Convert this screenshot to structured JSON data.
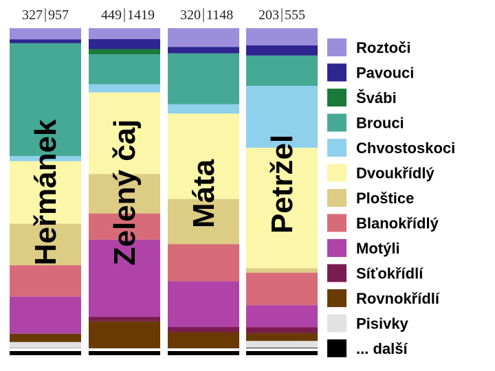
{
  "chart_data": {
    "type": "bar",
    "stacked": true,
    "normalized": true,
    "legend_position": "right",
    "grid": false,
    "categories": [
      "Heřmánek",
      "Zelený čaj",
      "Máta",
      "Petržel"
    ],
    "header_labels": [
      {
        "left": "327",
        "right": "957"
      },
      {
        "left": "449",
        "right": "1419"
      },
      {
        "left": "320",
        "right": "1148"
      },
      {
        "left": "203",
        "right": "555"
      }
    ],
    "series": [
      {
        "name": "Roztoči",
        "color": "#9b8fdc",
        "values": [
          3.5,
          3.4,
          5.9,
          5.1
        ]
      },
      {
        "name": "Pavouci",
        "color": "#2e2590",
        "values": [
          1.2,
          3.1,
          2.0,
          3.0
        ]
      },
      {
        "name": "Švábi",
        "color": "#1a7a3a",
        "values": [
          0,
          1.6,
          0,
          0
        ]
      },
      {
        "name": "Brouci",
        "color": "#45a995",
        "values": [
          35.3,
          9.3,
          15.9,
          9.0
        ]
      },
      {
        "name": "Chvostoskoci",
        "color": "#8fd0ec",
        "values": [
          1.6,
          2.5,
          2.9,
          18.3
        ]
      },
      {
        "name": "Dvoukřídlý",
        "color": "#fbf6a8",
        "values": [
          19.5,
          25.3,
          26.7,
          35.7
        ]
      },
      {
        "name": "Ploštice",
        "color": "#ddcc84",
        "values": [
          13.0,
          12.2,
          14.1,
          1.3
        ]
      },
      {
        "name": "Blanokřídlý",
        "color": "#d76c78",
        "values": [
          9.8,
          8.1,
          11.6,
          9.6
        ]
      },
      {
        "name": "Motýli",
        "color": "#b043a8",
        "values": [
          11.6,
          23.9,
          14.3,
          6.5
        ]
      },
      {
        "name": "Síťokřídlí",
        "color": "#7a1c50",
        "values": [
          0,
          1.4,
          1.6,
          1.7
        ]
      },
      {
        "name": "Rovnokřídlí",
        "color": "#6a3a05",
        "values": [
          2.6,
          8.4,
          5.1,
          2.4
        ]
      },
      {
        "name": "Pisivky",
        "color": "#e2e2e2",
        "values": [
          1.9,
          0,
          0,
          2.0
        ]
      },
      {
        "name": "... další",
        "color": "#000000",
        "values": [
          2.2,
          2.1,
          2.1,
          2.2
        ]
      }
    ]
  }
}
